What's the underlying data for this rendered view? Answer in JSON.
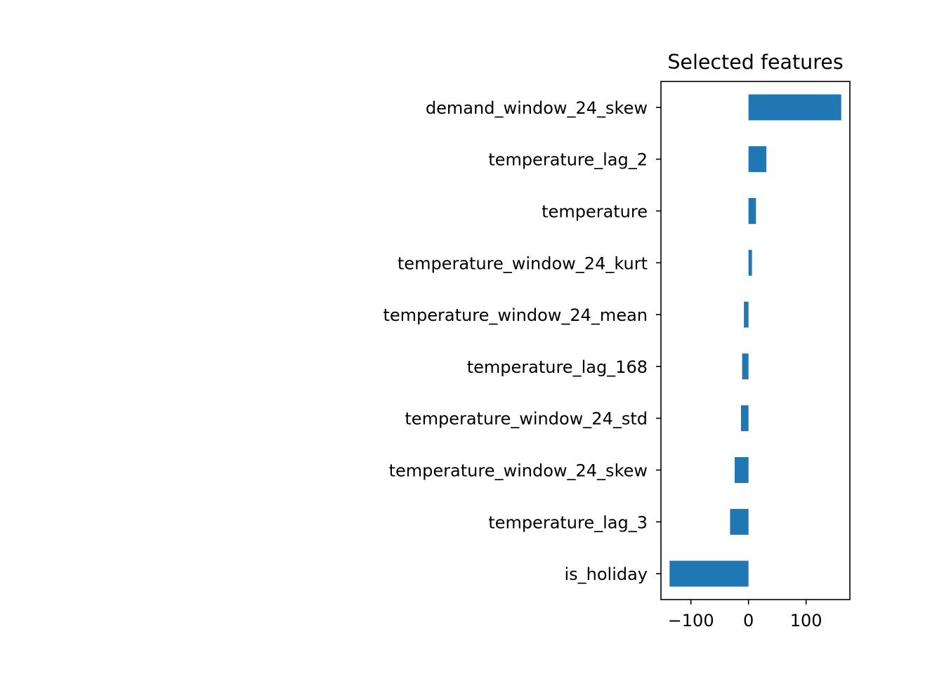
{
  "chart_data": {
    "type": "bar",
    "orientation": "horizontal",
    "title": "Selected features",
    "xlabel": "",
    "ylabel": "",
    "categories": [
      "demand_window_24_skew",
      "temperature_lag_2",
      "temperature",
      "temperature_window_24_kurt",
      "temperature_window_24_mean",
      "temperature_lag_168",
      "temperature_window_24_std",
      "temperature_window_24_skew",
      "temperature_lag_3",
      "is_holiday"
    ],
    "values": [
      161,
      31,
      13,
      6,
      -8,
      -11,
      -13,
      -24,
      -32,
      -137
    ],
    "xlim": [
      -152,
      176
    ],
    "xticks": [
      {
        "value": -100,
        "label": "−100"
      },
      {
        "value": 0,
        "label": "0"
      },
      {
        "value": 100,
        "label": "100"
      }
    ],
    "bar_color": "#1f77b4",
    "grid": false,
    "legend": "none"
  }
}
